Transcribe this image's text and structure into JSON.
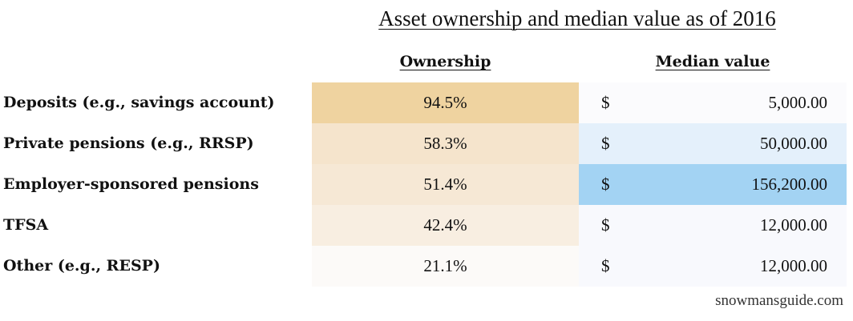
{
  "chart_data": {
    "type": "table",
    "title": "Asset ownership and median value as of 2016",
    "columns": [
      "Ownership",
      "Median value"
    ],
    "rows": [
      {
        "label": "Deposits (e.g., savings account)",
        "ownership": "94.5%",
        "ownership_value": 94.5,
        "currency": "$",
        "median": "5,000.00",
        "median_value": 5000,
        "own_color": "#efd3a0",
        "med_color": "#fbfbfd"
      },
      {
        "label": "Private pensions (e.g., RRSP)",
        "ownership": "58.3%",
        "ownership_value": 58.3,
        "currency": "$",
        "median": "50,000.00",
        "median_value": 50000,
        "own_color": "#f5e4cc",
        "med_color": "#e4f0fb"
      },
      {
        "label": "Employer-sponsored pensions",
        "ownership": "51.4%",
        "ownership_value": 51.4,
        "currency": "$",
        "median": "156,200.00",
        "median_value": 156200,
        "own_color": "#f6e8d5",
        "med_color": "#a3d3f3"
      },
      {
        "label": "TFSA",
        "ownership": "42.4%",
        "ownership_value": 42.4,
        "currency": "$",
        "median": "12,000.00",
        "median_value": 12000,
        "own_color": "#f8eee1",
        "med_color": "#f8f9fd"
      },
      {
        "label": "Other (e.g., RESP)",
        "ownership": "21.1%",
        "ownership_value": 21.1,
        "currency": "$",
        "median": "12,000.00",
        "median_value": 12000,
        "own_color": "#fcfaf8",
        "med_color": "#f8f9fd"
      }
    ]
  },
  "source": "snowmansguide.com"
}
